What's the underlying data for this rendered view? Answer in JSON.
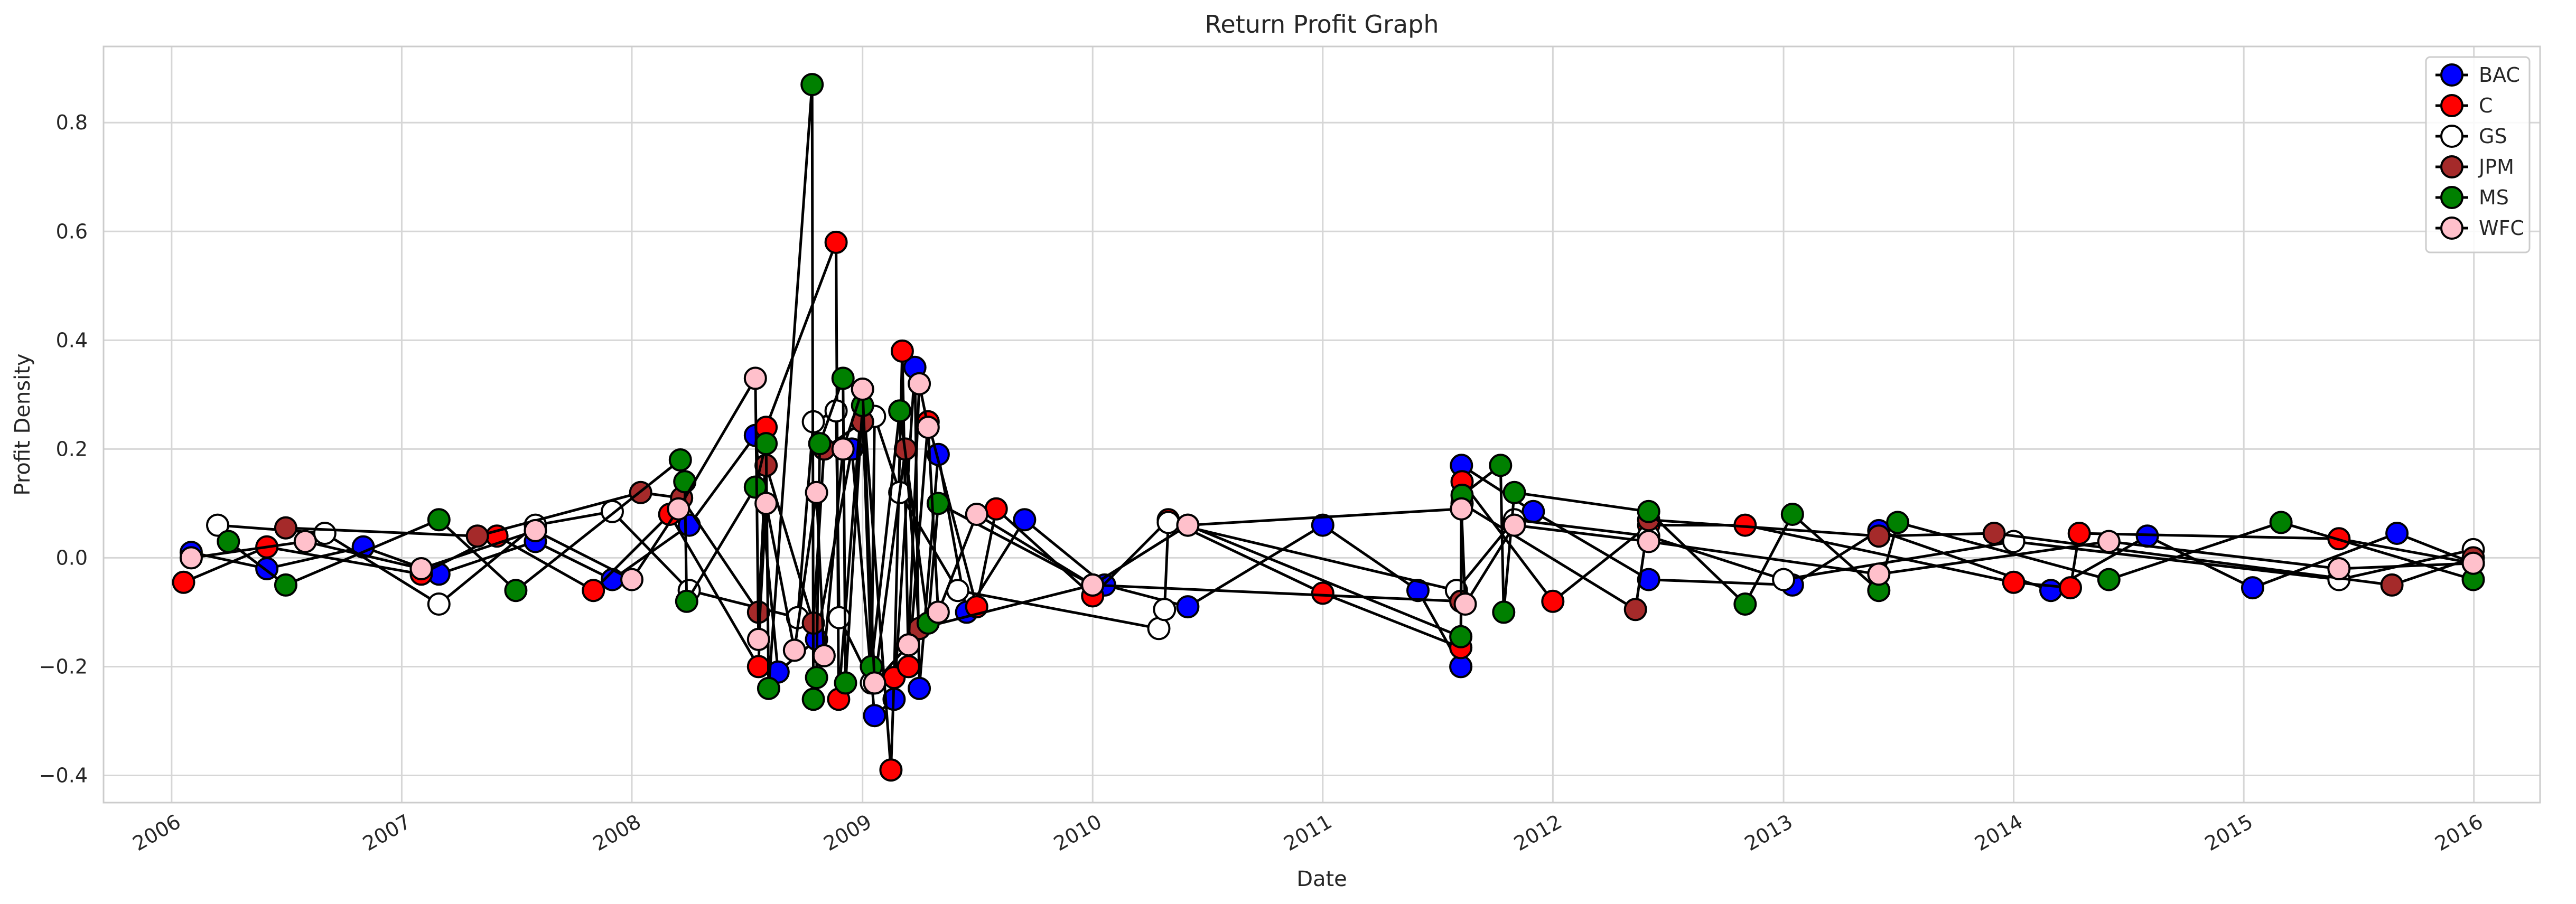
{
  "chart_data": {
    "type": "line",
    "title": "Return Profit Graph",
    "xlabel": "Date",
    "ylabel": "Profit Density",
    "xlim": [
      "2005-09-15",
      "2016-04-15"
    ],
    "ylim": [
      -0.45,
      0.94
    ],
    "x_ticks": [
      "2006",
      "2007",
      "2008",
      "2009",
      "2010",
      "2011",
      "2012",
      "2013",
      "2014",
      "2015",
      "2016"
    ],
    "y_ticks": [
      -0.4,
      -0.2,
      0.0,
      0.2,
      0.4,
      0.6,
      0.8
    ],
    "y_tick_labels": [
      "−0.4",
      "−0.2",
      "0.0",
      "0.2",
      "0.4",
      "0.6",
      "0.8"
    ],
    "grid": true,
    "legend_position": "top-right",
    "marker": "circle",
    "line_color": "#000000",
    "series": [
      {
        "name": "BAC",
        "color": "#0000ff",
        "points": [
          [
            "2006-02-01",
            0.01
          ],
          [
            "2006-06-01",
            -0.02
          ],
          [
            "2006-11-01",
            0.02
          ],
          [
            "2007-03-01",
            -0.03
          ],
          [
            "2007-08-01",
            0.03
          ],
          [
            "2007-12-01",
            -0.04
          ],
          [
            "2008-04-01",
            0.06
          ],
          [
            "2008-07-15",
            0.225
          ],
          [
            "2008-08-20",
            -0.21
          ],
          [
            "2008-10-20",
            -0.15
          ],
          [
            "2008-12-15",
            0.2
          ],
          [
            "2009-01-20",
            -0.29
          ],
          [
            "2009-02-20",
            -0.26
          ],
          [
            "2009-03-25",
            0.35
          ],
          [
            "2009-04-01",
            -0.24
          ],
          [
            "2009-05-01",
            0.19
          ],
          [
            "2009-06-15",
            -0.1
          ],
          [
            "2009-09-15",
            0.07
          ],
          [
            "2010-01-20",
            -0.05
          ],
          [
            "2010-06-01",
            -0.09
          ],
          [
            "2011-01-01",
            0.06
          ],
          [
            "2011-06-01",
            -0.06
          ],
          [
            "2011-08-08",
            -0.2
          ],
          [
            "2011-08-09",
            0.17
          ],
          [
            "2011-12-01",
            0.085
          ],
          [
            "2012-06-01",
            -0.04
          ],
          [
            "2013-01-15",
            -0.05
          ],
          [
            "2013-06-01",
            0.05
          ],
          [
            "2014-03-01",
            -0.06
          ],
          [
            "2014-08-01",
            0.04
          ],
          [
            "2015-01-15",
            -0.055
          ],
          [
            "2015-09-01",
            0.045
          ],
          [
            "2015-12-31",
            -0.01
          ]
        ]
      },
      {
        "name": "C",
        "color": "#ff0000",
        "points": [
          [
            "2006-01-20",
            -0.045
          ],
          [
            "2006-06-01",
            0.02
          ],
          [
            "2007-02-01",
            -0.03
          ],
          [
            "2007-06-01",
            0.04
          ],
          [
            "2007-11-01",
            -0.06
          ],
          [
            "2008-03-01",
            0.08
          ],
          [
            "2008-07-20",
            -0.2
          ],
          [
            "2008-08-01",
            0.24
          ],
          [
            "2008-11-20",
            0.58
          ],
          [
            "2008-11-24",
            -0.26
          ],
          [
            "2009-01-01",
            0.31
          ],
          [
            "2009-02-15",
            -0.39
          ],
          [
            "2009-02-20",
            -0.22
          ],
          [
            "2009-03-05",
            0.38
          ],
          [
            "2009-03-15",
            -0.2
          ],
          [
            "2009-04-15",
            0.25
          ],
          [
            "2009-07-01",
            -0.09
          ],
          [
            "2009-08-01",
            0.09
          ],
          [
            "2010-01-01",
            -0.07
          ],
          [
            "2010-05-01",
            0.07
          ],
          [
            "2011-01-01",
            -0.065
          ],
          [
            "2011-08-08",
            -0.165
          ],
          [
            "2011-08-10",
            0.14
          ],
          [
            "2012-01-01",
            -0.08
          ],
          [
            "2012-06-01",
            0.06
          ],
          [
            "2012-11-01",
            0.06
          ],
          [
            "2014-01-01",
            -0.045
          ],
          [
            "2014-04-01",
            -0.055
          ],
          [
            "2014-04-15",
            0.045
          ],
          [
            "2015-06-01",
            0.035
          ],
          [
            "2015-12-31",
            -0.01
          ]
        ]
      },
      {
        "name": "GS",
        "color": "#ffffff",
        "points": [
          [
            "2006-03-15",
            0.06
          ],
          [
            "2006-09-01",
            0.045
          ],
          [
            "2007-03-01",
            -0.085
          ],
          [
            "2007-08-01",
            0.06
          ],
          [
            "2007-12-01",
            0.085
          ],
          [
            "2008-04-01",
            -0.06
          ],
          [
            "2008-09-20",
            -0.11
          ],
          [
            "2008-10-15",
            0.25
          ],
          [
            "2008-11-20",
            0.27
          ],
          [
            "2008-11-25",
            -0.11
          ],
          [
            "2009-01-15",
            -0.23
          ],
          [
            "2009-01-20",
            0.26
          ],
          [
            "2009-03-01",
            0.12
          ],
          [
            "2009-06-01",
            -0.06
          ],
          [
            "2010-04-16",
            -0.13
          ],
          [
            "2010-04-25",
            -0.095
          ],
          [
            "2010-05-01",
            0.065
          ],
          [
            "2011-08-01",
            -0.06
          ],
          [
            "2011-11-01",
            0.07
          ],
          [
            "2012-06-01",
            0.04
          ],
          [
            "2013-01-01",
            -0.04
          ],
          [
            "2014-01-01",
            0.03
          ],
          [
            "2015-06-01",
            -0.04
          ],
          [
            "2015-12-31",
            0.015
          ]
        ]
      },
      {
        "name": "JPM",
        "color": "#a52a2a",
        "points": [
          [
            "2006-07-01",
            0.055
          ],
          [
            "2007-05-01",
            0.04
          ],
          [
            "2008-01-15",
            0.12
          ],
          [
            "2008-03-20",
            0.11
          ],
          [
            "2008-07-20",
            -0.1
          ],
          [
            "2008-08-01",
            0.17
          ],
          [
            "2008-10-15",
            -0.12
          ],
          [
            "2008-11-01",
            0.2
          ],
          [
            "2009-01-01",
            0.25
          ],
          [
            "2009-01-20",
            -0.23
          ],
          [
            "2009-03-10",
            0.2
          ],
          [
            "2009-04-01",
            -0.13
          ],
          [
            "2010-01-01",
            -0.05
          ],
          [
            "2011-08-08",
            -0.08
          ],
          [
            "2011-08-10",
            0.1
          ],
          [
            "2012-05-11",
            -0.095
          ],
          [
            "2012-06-01",
            0.07
          ],
          [
            "2013-06-01",
            0.04
          ],
          [
            "2013-12-01",
            0.045
          ],
          [
            "2015-08-24",
            -0.05
          ],
          [
            "2015-12-31",
            0.0
          ]
        ]
      },
      {
        "name": "MS",
        "color": "#008000",
        "points": [
          [
            "2006-04-01",
            0.03
          ],
          [
            "2006-07-01",
            -0.05
          ],
          [
            "2007-03-01",
            0.07
          ],
          [
            "2007-07-01",
            -0.06
          ],
          [
            "2008-03-18",
            0.18
          ],
          [
            "2008-03-25",
            0.14
          ],
          [
            "2008-03-28",
            -0.08
          ],
          [
            "2008-07-15",
            0.13
          ],
          [
            "2008-08-01",
            0.21
          ],
          [
            "2008-08-05",
            -0.24
          ],
          [
            "2008-10-13",
            0.87
          ],
          [
            "2008-10-15",
            -0.26
          ],
          [
            "2008-10-20",
            -0.22
          ],
          [
            "2008-10-25",
            0.21
          ],
          [
            "2008-12-01",
            0.33
          ],
          [
            "2008-12-05",
            -0.23
          ],
          [
            "2009-01-01",
            0.28
          ],
          [
            "2009-01-15",
            -0.2
          ],
          [
            "2009-03-01",
            0.27
          ],
          [
            "2009-04-15",
            -0.12
          ],
          [
            "2009-05-01",
            0.1
          ],
          [
            "2010-01-01",
            -0.05
          ],
          [
            "2010-06-01",
            0.06
          ],
          [
            "2011-08-08",
            -0.145
          ],
          [
            "2011-08-10",
            0.115
          ],
          [
            "2011-10-10",
            0.17
          ],
          [
            "2011-10-15",
            -0.1
          ],
          [
            "2011-11-01",
            0.12
          ],
          [
            "2012-06-01",
            0.085
          ],
          [
            "2012-11-01",
            -0.085
          ],
          [
            "2013-01-15",
            0.08
          ],
          [
            "2013-06-01",
            -0.06
          ],
          [
            "2013-07-01",
            0.065
          ],
          [
            "2014-06-01",
            -0.04
          ],
          [
            "2015-03-01",
            0.065
          ],
          [
            "2015-12-31",
            -0.04
          ]
        ]
      },
      {
        "name": "WFC",
        "color": "#ffc0cb",
        "points": [
          [
            "2006-02-01",
            0.0
          ],
          [
            "2006-08-01",
            0.03
          ],
          [
            "2007-02-01",
            -0.02
          ],
          [
            "2007-08-01",
            0.05
          ],
          [
            "2008-01-01",
            -0.04
          ],
          [
            "2008-03-15",
            0.09
          ],
          [
            "2008-07-15",
            0.33
          ],
          [
            "2008-07-20",
            -0.15
          ],
          [
            "2008-08-01",
            0.1
          ],
          [
            "2008-09-15",
            -0.17
          ],
          [
            "2008-10-20",
            0.12
          ],
          [
            "2008-11-01",
            -0.18
          ],
          [
            "2008-12-01",
            0.2
          ],
          [
            "2009-01-01",
            0.31
          ],
          [
            "2009-01-20",
            -0.23
          ],
          [
            "2009-03-15",
            -0.16
          ],
          [
            "2009-04-01",
            0.32
          ],
          [
            "2009-04-15",
            0.24
          ],
          [
            "2009-05-01",
            -0.1
          ],
          [
            "2009-07-01",
            0.08
          ],
          [
            "2010-01-01",
            -0.05
          ],
          [
            "2010-06-01",
            0.06
          ],
          [
            "2011-08-09",
            0.09
          ],
          [
            "2011-08-15",
            -0.085
          ],
          [
            "2011-11-01",
            0.06
          ],
          [
            "2012-06-01",
            0.03
          ],
          [
            "2013-06-01",
            -0.03
          ],
          [
            "2014-06-01",
            0.03
          ],
          [
            "2015-06-01",
            -0.02
          ],
          [
            "2015-12-31",
            -0.01
          ]
        ]
      }
    ]
  }
}
